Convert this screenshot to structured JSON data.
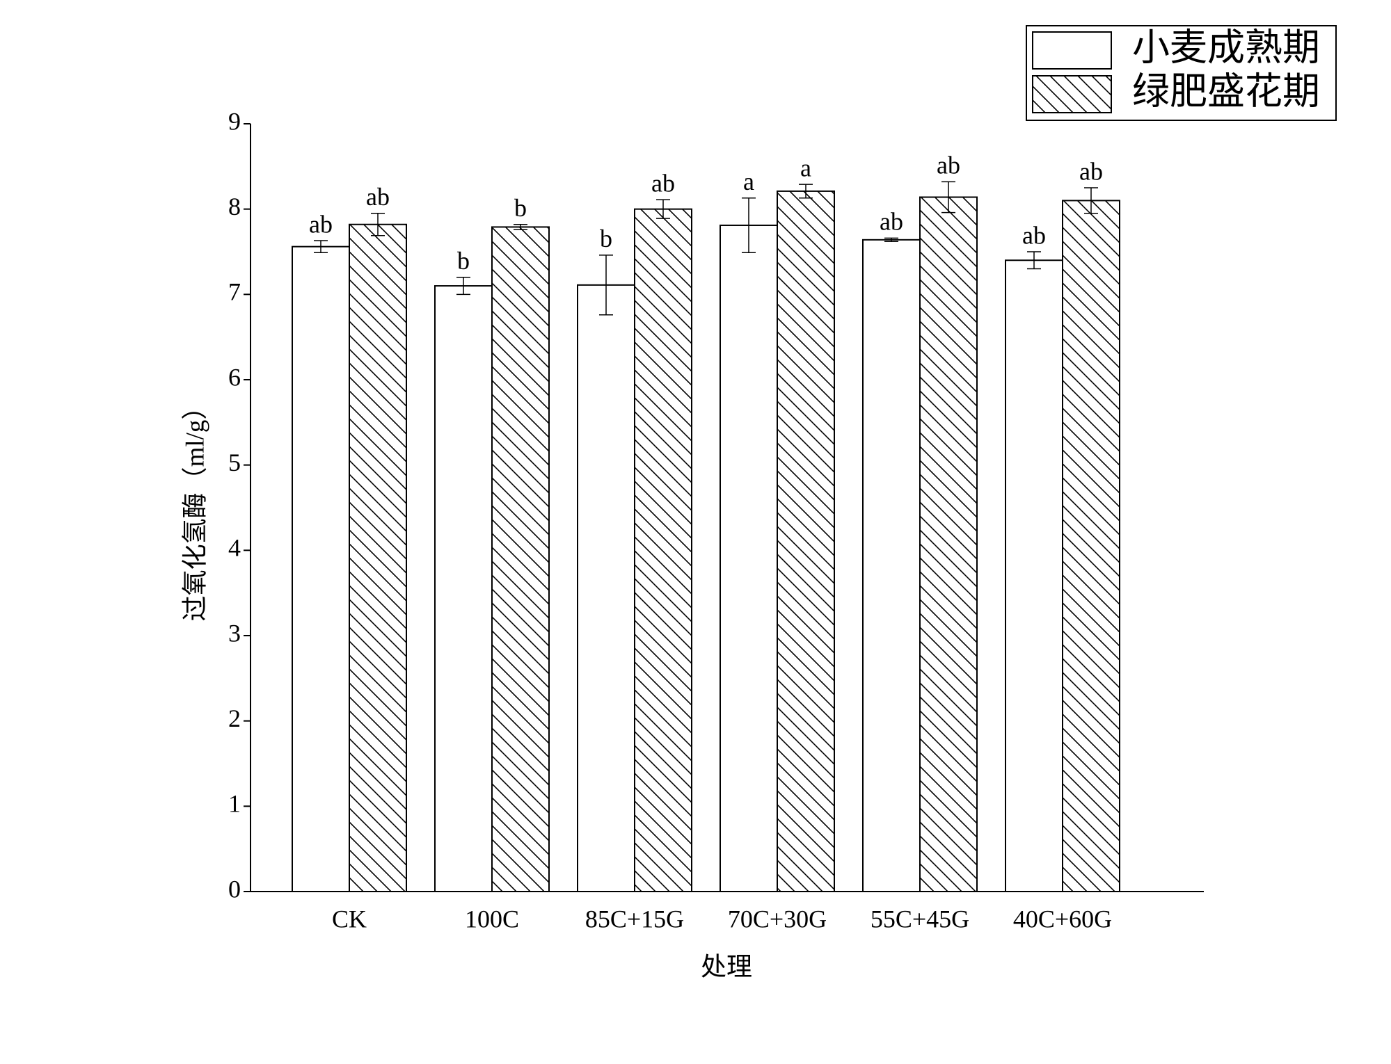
{
  "chart_data": {
    "type": "bar",
    "categories": [
      "CK",
      "100C",
      "85C+15G",
      "70C+30G",
      "55C+45G",
      "40C+60G"
    ],
    "series": [
      {
        "name": "小麦成熟期",
        "color": "#ffffff",
        "hatch": false,
        "values": [
          7.56,
          7.1,
          7.11,
          7.81,
          7.64,
          7.4
        ],
        "errors": [
          0.07,
          0.1,
          0.35,
          0.32,
          0.02,
          0.1
        ],
        "labels": [
          "ab",
          "b",
          "b",
          "a",
          "ab",
          "ab"
        ]
      },
      {
        "name": "绿肥盛花期",
        "color": "#ffffff",
        "hatch": true,
        "values": [
          7.82,
          7.79,
          8.0,
          8.21,
          8.14,
          8.1
        ],
        "errors": [
          0.13,
          0.03,
          0.11,
          0.08,
          0.18,
          0.15
        ],
        "labels": [
          "ab",
          "b",
          "ab",
          "a",
          "ab",
          "ab"
        ]
      }
    ],
    "xlabel": "处理",
    "ylabel": "过氧化氢酶（ml/g）",
    "ylim": [
      0,
      9
    ],
    "yticks": [
      0,
      1,
      2,
      3,
      4,
      5,
      6,
      7,
      8,
      9
    ],
    "legend": "upper right",
    "grid": false
  }
}
